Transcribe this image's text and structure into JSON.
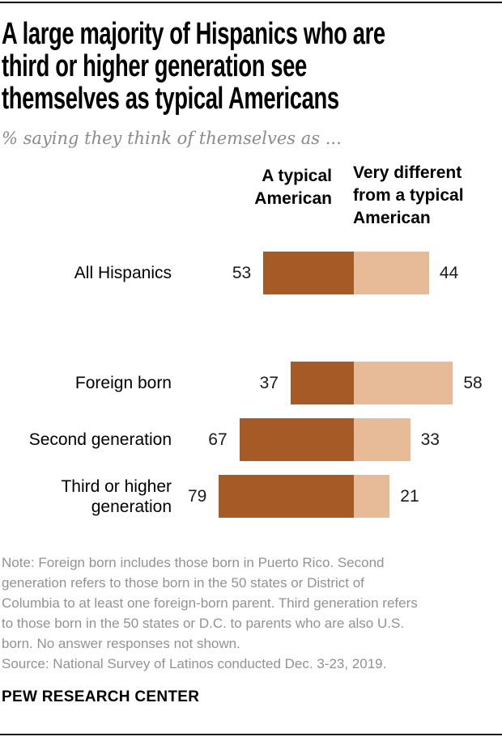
{
  "header": {
    "title": "A large majority of Hispanics who are\nthird or higher generation see\nthemselves as typical Americans",
    "subtitle": "% saying they think of themselves as ..."
  },
  "chart_data": {
    "type": "bar",
    "orientation": "horizontal",
    "unit": "%",
    "title": "A large majority of Hispanics who are third or higher generation see themselves as typical Americans",
    "subtitle": "% saying they think of themselves as ...",
    "categories": [
      "All Hispanics",
      "Foreign born",
      "Second generation",
      "Third or higher\ngeneration"
    ],
    "series": [
      {
        "name": "A typical American",
        "color": "#A65B26",
        "values": [
          53,
          37,
          67,
          79
        ]
      },
      {
        "name": "Very different from a typical American",
        "color": "#E7BB98",
        "values": [
          44,
          58,
          33,
          21
        ]
      }
    ],
    "legend": {
      "position": "top",
      "left_label": "A typical\nAmerican",
      "right_label": "Very different\nfrom a typical\nAmerican"
    },
    "grid": false,
    "axes_shown": false,
    "value_labels": "at outer ends of each bar pair",
    "layout_note": "paired segments share a common vertical boundary; dark segment grows left, light segment grows right"
  },
  "footer": {
    "note": "Note: Foreign born includes those born in Puerto Rico. Second\ngeneration refers to those born in the 50 states or District of\nColumbia to at least one foreign-born parent. Third generation refers\nto those born in the 50 states or D.C. to parents who are also U.S.\nborn. No answer responses not shown.",
    "source": "Source: National Survey of Latinos conducted Dec. 3-23, 2019.",
    "brand": "PEW RESEARCH CENTER"
  }
}
